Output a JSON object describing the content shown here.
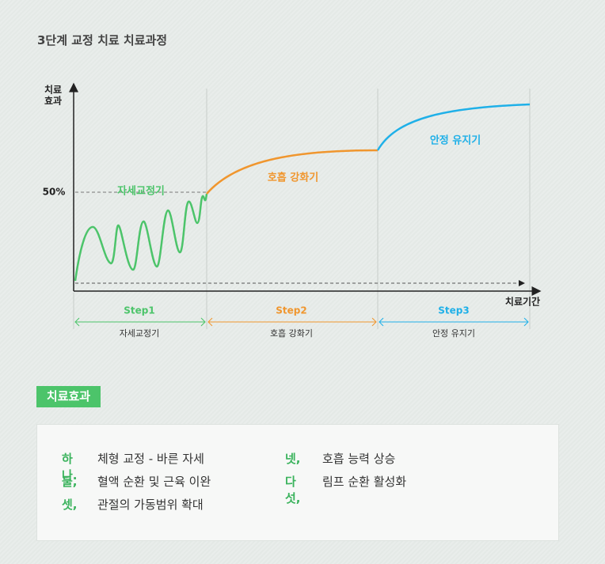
{
  "header": {
    "title": "3단계 교정 치료 치료과정"
  },
  "diagram": {
    "y_axis_label": [
      "치료",
      "효과"
    ],
    "y_marker": "50%",
    "x_axis_label": "치료기간",
    "phases": [
      {
        "curve_label": "자세교정기",
        "step": "Step1",
        "name": "자세교정기"
      },
      {
        "curve_label": "호흡 강화기",
        "step": "Step2",
        "name": "호흡 강화기"
      },
      {
        "curve_label": "안정 유지기",
        "step": "Step3",
        "name": "안정 유지기"
      }
    ]
  },
  "effects": {
    "title": "치료효과",
    "items": [
      {
        "marker": "하나.",
        "text": "체형 교정 - 바른 자세"
      },
      {
        "marker": "둘,",
        "text": "혈액 순환 및 근육 이완"
      },
      {
        "marker": "셋,",
        "text": "관절의 가동범위 확대"
      },
      {
        "marker": "넷,",
        "text": "호흡 능력 상승"
      },
      {
        "marker": "다섯,",
        "text": "림프 순환 활성화"
      }
    ]
  }
}
